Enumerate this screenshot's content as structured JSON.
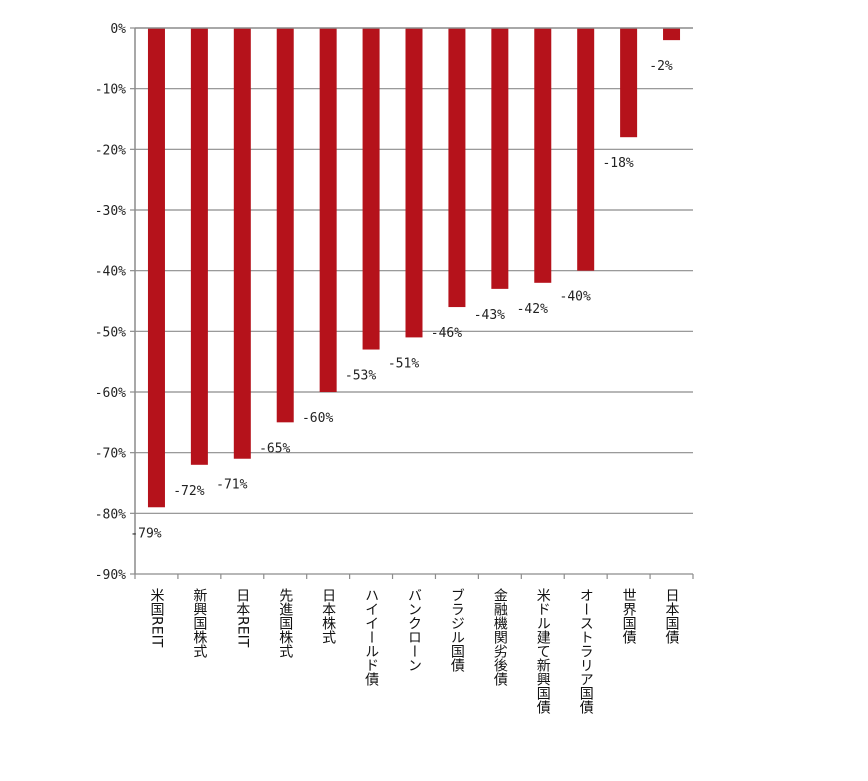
{
  "chart_data": {
    "type": "bar",
    "orientation": "vertical",
    "categories": [
      "米国REIT",
      "新興国株式",
      "日本REIT",
      "先進国株式",
      "日本株式",
      "ハイイールド債",
      "バンクローン",
      "ブラジル国債",
      "金融機関劣後債",
      "米ドル建て新興国債",
      "オーストラリア国債",
      "世界国債",
      "日本国債"
    ],
    "values": [
      -79,
      -72,
      -71,
      -65,
      -60,
      -53,
      -51,
      -46,
      -43,
      -42,
      -40,
      -18,
      -2
    ],
    "data_labels": [
      "-79%",
      "-72%",
      "-71%",
      "-65%",
      "-60%",
      "-53%",
      "-51%",
      "-46%",
      "-43%",
      "-42%",
      "-40%",
      "-18%",
      "-2%"
    ],
    "y_ticks": [
      0,
      -10,
      -20,
      -30,
      -40,
      -50,
      -60,
      -70,
      -80,
      -90
    ],
    "y_tick_labels": [
      "0%",
      "-10%",
      "-20%",
      "-30%",
      "-40%",
      "-50%",
      "-60%",
      "-70%",
      "-80%",
      "-90%"
    ],
    "ylim": [
      -90,
      0
    ],
    "title": "",
    "xlabel": "",
    "ylabel": "",
    "grid": true,
    "legend": "none",
    "bar_color": "#b5121b",
    "grid_color": "#8c8c8c",
    "axis_color": "#8c8c8c"
  }
}
